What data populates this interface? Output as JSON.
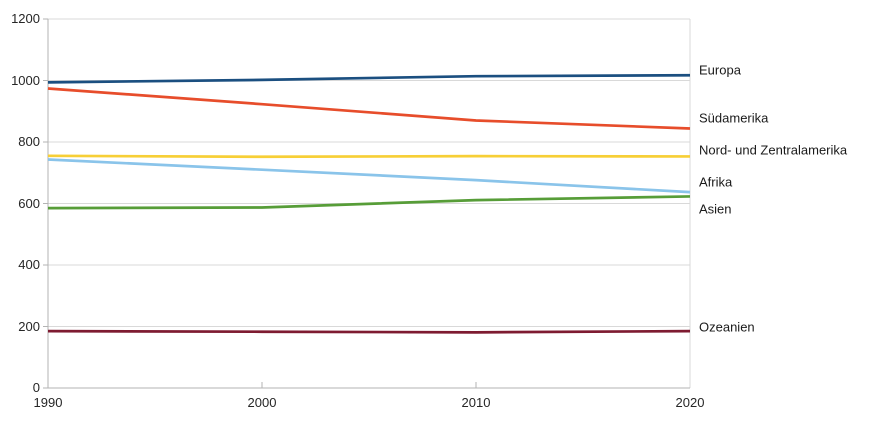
{
  "chart_data": {
    "type": "line",
    "title": "",
    "xlabel": "",
    "ylabel": "",
    "x": [
      1990,
      2000,
      2010,
      2020
    ],
    "xticks": [
      "1990",
      "2000",
      "2010",
      "2020"
    ],
    "yticks": [
      0,
      200,
      400,
      600,
      800,
      1000,
      1200
    ],
    "xlim": [
      1990,
      2020
    ],
    "ylim": [
      0,
      1200
    ],
    "grid": "horizontal",
    "legend_position": "labels-right-of-lines",
    "colors": {
      "gridline": "#d9d9d9",
      "axis": "#b3b3b3",
      "plot_border": "#d9d9d9",
      "tick_text": "#262626"
    },
    "series": [
      {
        "name": "Europa",
        "color": "#1B4F80",
        "values": [
          994,
          1002,
          1014,
          1017
        ],
        "label_dy": -5
      },
      {
        "name": "Südamerika",
        "color": "#E74D2B",
        "values": [
          974,
          923,
          870,
          844
        ],
        "label_dy": -10
      },
      {
        "name": "Nord- und Zentralamerika",
        "color": "#F7CF36",
        "values": [
          755,
          752,
          754,
          753
        ],
        "label_dy": -6
      },
      {
        "name": "Afrika",
        "color": "#8AC4EA",
        "values": [
          743,
          710,
          676,
          637
        ],
        "label_dy": -10
      },
      {
        "name": "Asien",
        "color": "#579D38",
        "values": [
          585,
          587,
          611,
          623
        ],
        "label_dy": 13
      },
      {
        "name": "Ozeanien",
        "color": "#7E1B31",
        "values": [
          185,
          183,
          181,
          185
        ],
        "label_dy": -4
      }
    ]
  }
}
